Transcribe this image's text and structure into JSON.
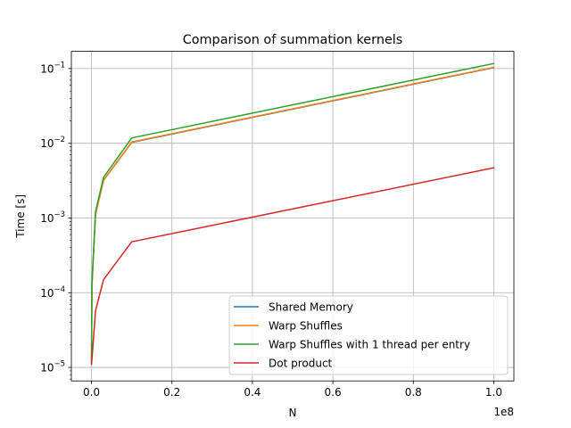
{
  "chart_data": {
    "type": "line",
    "title": "Comparison of summation kernels",
    "xlabel": "N",
    "ylabel": "Time [s]",
    "x_offset_label": "1e8",
    "x_scale_factor": 100000000,
    "xscale": "linear",
    "yscale": "log",
    "xlim": [
      -5000000,
      105000000
    ],
    "ylim": [
      6.6e-06,
      0.17
    ],
    "grid": true,
    "legend_position": "lower-right",
    "x_ticks": [
      {
        "value": 0,
        "label": "0.0"
      },
      {
        "value": 20000000,
        "label": "0.2"
      },
      {
        "value": 40000000,
        "label": "0.4"
      },
      {
        "value": 60000000,
        "label": "0.6"
      },
      {
        "value": 80000000,
        "label": "0.8"
      },
      {
        "value": 100000000,
        "label": "1.0"
      }
    ],
    "y_ticks": [
      {
        "value": 1e-05,
        "base": "10",
        "exp": "−5"
      },
      {
        "value": 0.0001,
        "base": "10",
        "exp": "−4"
      },
      {
        "value": 0.001,
        "base": "10",
        "exp": "−3"
      },
      {
        "value": 0.01,
        "base": "10",
        "exp": "−2"
      },
      {
        "value": 0.1,
        "base": "10",
        "exp": "−1"
      }
    ],
    "series": [
      {
        "name": "Shared Memory",
        "color": "#1f77b4",
        "points": [
          [
            10000,
            1.15e-05
          ],
          [
            100000,
            0.00012
          ],
          [
            1000000,
            0.00112
          ],
          [
            3000000,
            0.0032
          ],
          [
            10000000,
            0.0103
          ],
          [
            100000000,
            0.103
          ]
        ]
      },
      {
        "name": "Warp Shuffles",
        "color": "#ff7f0e",
        "points": [
          [
            10000,
            1.15e-05
          ],
          [
            100000,
            0.00012
          ],
          [
            1000000,
            0.00112
          ],
          [
            3000000,
            0.0032
          ],
          [
            10000000,
            0.0104
          ],
          [
            100000000,
            0.104
          ]
        ]
      },
      {
        "name": "Warp Shuffles with 1 thread per entry",
        "color": "#2ca02c",
        "points": [
          [
            10000,
            1.25e-05
          ],
          [
            100000,
            0.000135
          ],
          [
            1000000,
            0.00122
          ],
          [
            3000000,
            0.0035
          ],
          [
            10000000,
            0.0118
          ],
          [
            100000000,
            0.117
          ]
        ]
      },
      {
        "name": "Dot product",
        "color": "#d62728",
        "points": [
          [
            10000,
            1.1e-05
          ],
          [
            1000000,
            5.7e-05
          ],
          [
            3000000,
            0.00015
          ],
          [
            10000000,
            0.00048
          ],
          [
            100000000,
            0.0047
          ]
        ]
      }
    ]
  }
}
